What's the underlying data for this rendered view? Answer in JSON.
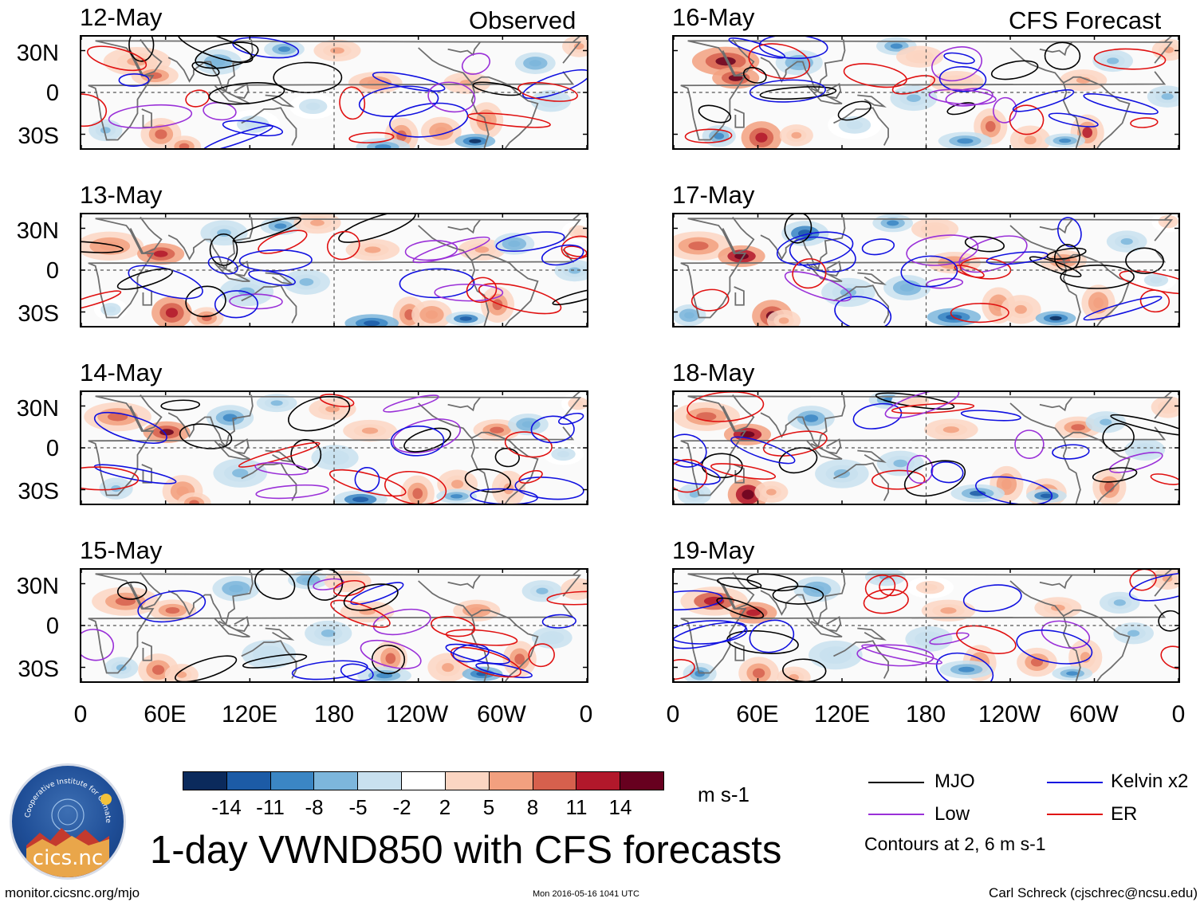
{
  "panels": [
    {
      "date": "12-May",
      "tag": "Observed"
    },
    {
      "date": "13-May",
      "tag": ""
    },
    {
      "date": "14-May",
      "tag": ""
    },
    {
      "date": "15-May",
      "tag": ""
    },
    {
      "date": "16-May",
      "tag": "CFS Forecast"
    },
    {
      "date": "17-May",
      "tag": ""
    },
    {
      "date": "18-May",
      "tag": ""
    },
    {
      "date": "19-May",
      "tag": ""
    }
  ],
  "lat_labels": [
    "30N",
    "0",
    "30S"
  ],
  "lon_labels": [
    "0",
    "60E",
    "120E",
    "180",
    "120W",
    "60W",
    "0"
  ],
  "colorbar": {
    "labels": [
      "-14",
      "-11",
      "-8",
      "-5",
      "-2",
      "2",
      "5",
      "8",
      "11",
      "14"
    ],
    "colors": [
      "#0b2a5c",
      "#1c5ba6",
      "#3b86c4",
      "#7db6dc",
      "#c8e0ef",
      "#ffffff",
      "#fbd5c2",
      "#f2a07f",
      "#d6604d",
      "#b2182b",
      "#67001f"
    ],
    "units": "m s-1"
  },
  "legend": {
    "items": [
      {
        "label": "MJO",
        "color": "#000000"
      },
      {
        "label": "Kelvin x2",
        "color": "#1010e0"
      },
      {
        "label": "Low",
        "color": "#9a30d8"
      },
      {
        "label": "ER",
        "color": "#e01010"
      }
    ],
    "note": "Contours at 2, 6 m s-1"
  },
  "title": "1-day VWND850 with CFS forecasts",
  "footer": {
    "left": "monitor.cicsnc.org/mjo",
    "center": "Mon 2016-05-16 1041 UTC",
    "right": "Carl Schreck (cjschrec@ncsu.edu)"
  },
  "logo": {
    "text": "cics.nc",
    "ring": "Cooperative Institute for Climate and Satellites"
  }
}
